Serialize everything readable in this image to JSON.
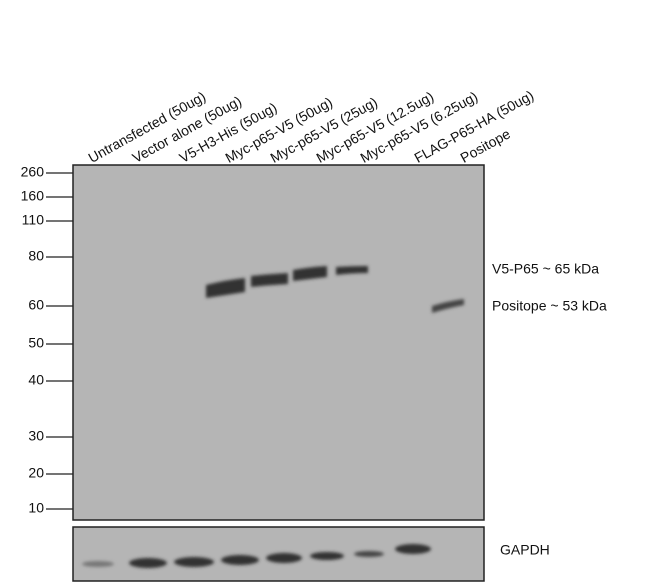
{
  "lanes": [
    "Untransfected (50ug)",
    "Vector alone (50ug)",
    "V5-H3-His (50ug)",
    "Myc-p65-V5 (50ug)",
    "Myc-p65-V5 (25ug)",
    "Myc-p65-V5 (12.5ug)",
    "Myc-p65-V5 (6.25ug)",
    "FLAG-P65-HA (50ug)",
    "Positope"
  ],
  "markers": [
    "260",
    "160",
    "110",
    "80",
    "60",
    "50",
    "40",
    "30",
    "20",
    "10"
  ],
  "annotations": [
    "V5-P65 ~ 65 kDa",
    "Positope ~ 53 kDa"
  ],
  "loading_control": "GAPDH"
}
